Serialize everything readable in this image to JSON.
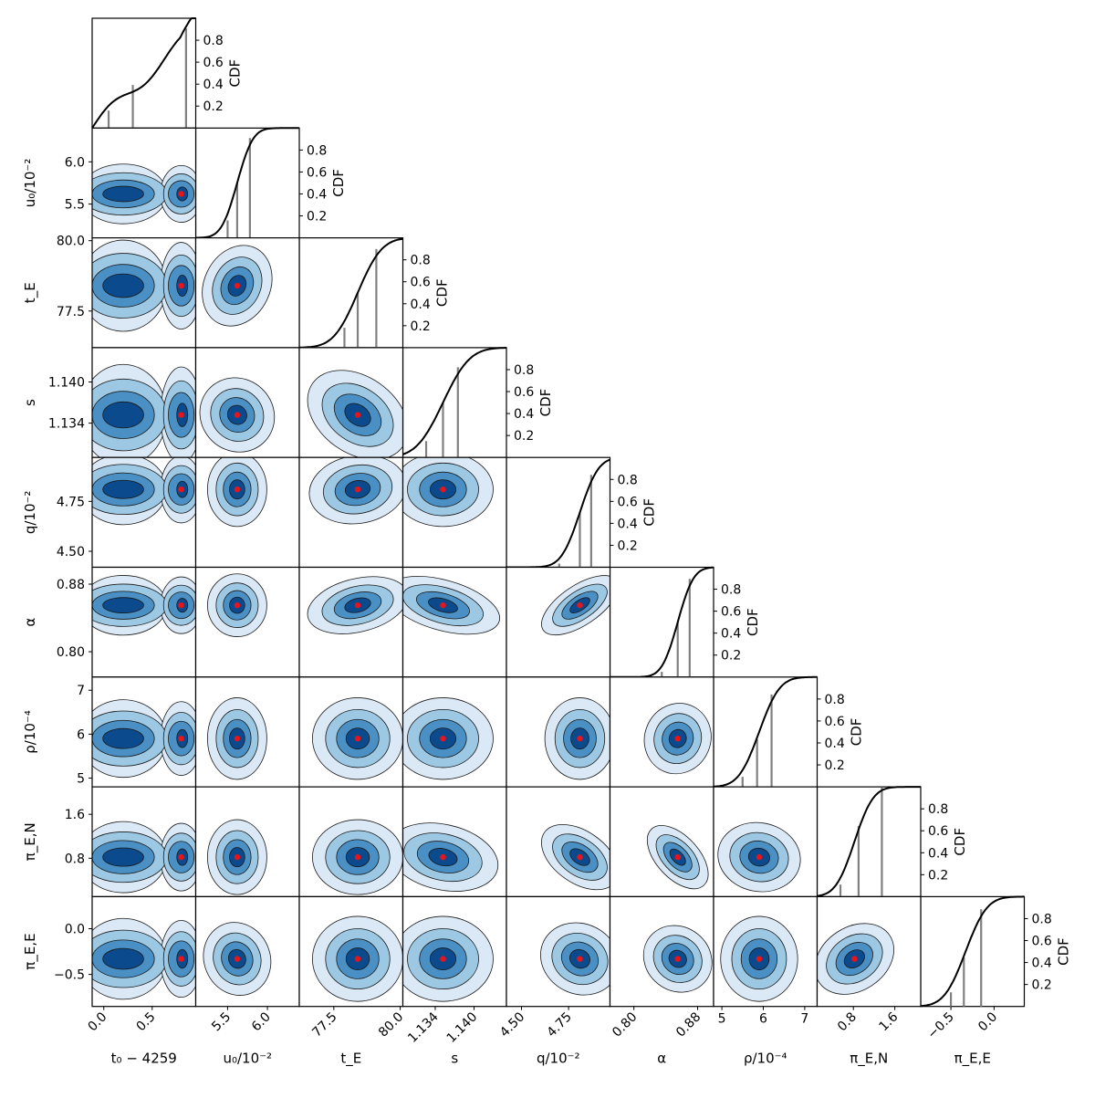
{
  "chart_data": {
    "type": "corner",
    "colors": {
      "level1": "#dbe9f6",
      "level2": "#9cc8e3",
      "level3": "#4a90c4",
      "level4": "#0b4a8c",
      "contour_line": "#1a1a1a",
      "best_fit": "#e8141c",
      "cdf_line": "#000000",
      "quantile_line": "#808080"
    },
    "diagonal_axis_label": "CDF",
    "diagonal_ticks": [
      "0.2",
      "0.4",
      "0.6",
      "0.8"
    ],
    "parameters": [
      {
        "key": "t0",
        "label": "t₀ − 4259",
        "axis_label": "",
        "range": [
          -0.12,
          0.95
        ],
        "ticks": [
          0.0,
          0.5
        ],
        "tick_labels": [
          "0.0",
          "0.5"
        ],
        "best": 0.8,
        "spread": 0.35,
        "cdf_quantiles": [
          0.05,
          0.3,
          0.85
        ]
      },
      {
        "key": "u0",
        "label": "u₀/10⁻²",
        "axis_label": "u₀/10⁻²",
        "range": [
          5.1,
          6.4
        ],
        "ticks": [
          5.5,
          6.0
        ],
        "tick_labels": [
          "5.5",
          "6.0"
        ],
        "best": 5.62,
        "spread": 0.12,
        "cdf_quantiles": [
          5.5,
          5.62,
          5.78
        ]
      },
      {
        "key": "tE",
        "label": "t_E",
        "axis_label": "t_E",
        "range": [
          76.2,
          80.1
        ],
        "ticks": [
          77.5,
          80.0
        ],
        "tick_labels": [
          "77.5",
          "80.0"
        ],
        "best": 78.4,
        "spread": 0.55,
        "cdf_quantiles": [
          77.9,
          78.4,
          79.1
        ]
      },
      {
        "key": "s",
        "label": "s",
        "axis_label": "s",
        "range": [
          1.129,
          1.145
        ],
        "ticks": [
          1.134,
          1.14
        ],
        "tick_labels": [
          "1.134",
          "1.140"
        ],
        "best": 1.1352,
        "spread": 0.0025,
        "cdf_quantiles": [
          1.1326,
          1.1352,
          1.1375
        ]
      },
      {
        "key": "q",
        "label": "q/10⁻²",
        "axis_label": "q/10⁻²",
        "range": [
          4.42,
          4.97
        ],
        "ticks": [
          4.5,
          4.75
        ],
        "tick_labels": [
          "4.50",
          "4.75"
        ],
        "best": 4.81,
        "spread": 0.06,
        "cdf_quantiles": [
          4.7,
          4.81,
          4.87
        ]
      },
      {
        "key": "alpha",
        "label": "α",
        "axis_label": "α",
        "range": [
          0.77,
          0.9
        ],
        "ticks": [
          0.8,
          0.88
        ],
        "tick_labels": [
          "0.80",
          "0.88"
        ],
        "best": 0.855,
        "spread": 0.012,
        "cdf_quantiles": [
          0.835,
          0.855,
          0.87
        ]
      },
      {
        "key": "rho",
        "label": "ρ/10⁻⁴",
        "axis_label": "ρ/10⁻⁴",
        "range": [
          4.8,
          7.3
        ],
        "ticks": [
          5,
          6,
          7
        ],
        "tick_labels": [
          "5",
          "6",
          "7"
        ],
        "best": 5.9,
        "spread": 0.3,
        "cdf_quantiles": [
          5.5,
          5.85,
          6.2
        ]
      },
      {
        "key": "piEN",
        "label": "π_E,N",
        "axis_label": "π_E,N",
        "range": [
          0.1,
          2.1
        ],
        "ticks": [
          0.8,
          1.6
        ],
        "tick_labels": [
          "0.8",
          "1.6"
        ],
        "best": 0.82,
        "spread": 0.22,
        "cdf_quantiles": [
          0.55,
          0.9,
          1.35
        ]
      },
      {
        "key": "piEE",
        "label": "π_E,E",
        "axis_label": "π_E,E",
        "range": [
          -0.85,
          0.35
        ],
        "ticks": [
          -0.5,
          0.0
        ],
        "tick_labels": [
          "−0.5",
          "0.0"
        ],
        "best": -0.33,
        "spread": 0.15,
        "cdf_quantiles": [
          -0.5,
          -0.35,
          -0.15
        ]
      }
    ]
  }
}
